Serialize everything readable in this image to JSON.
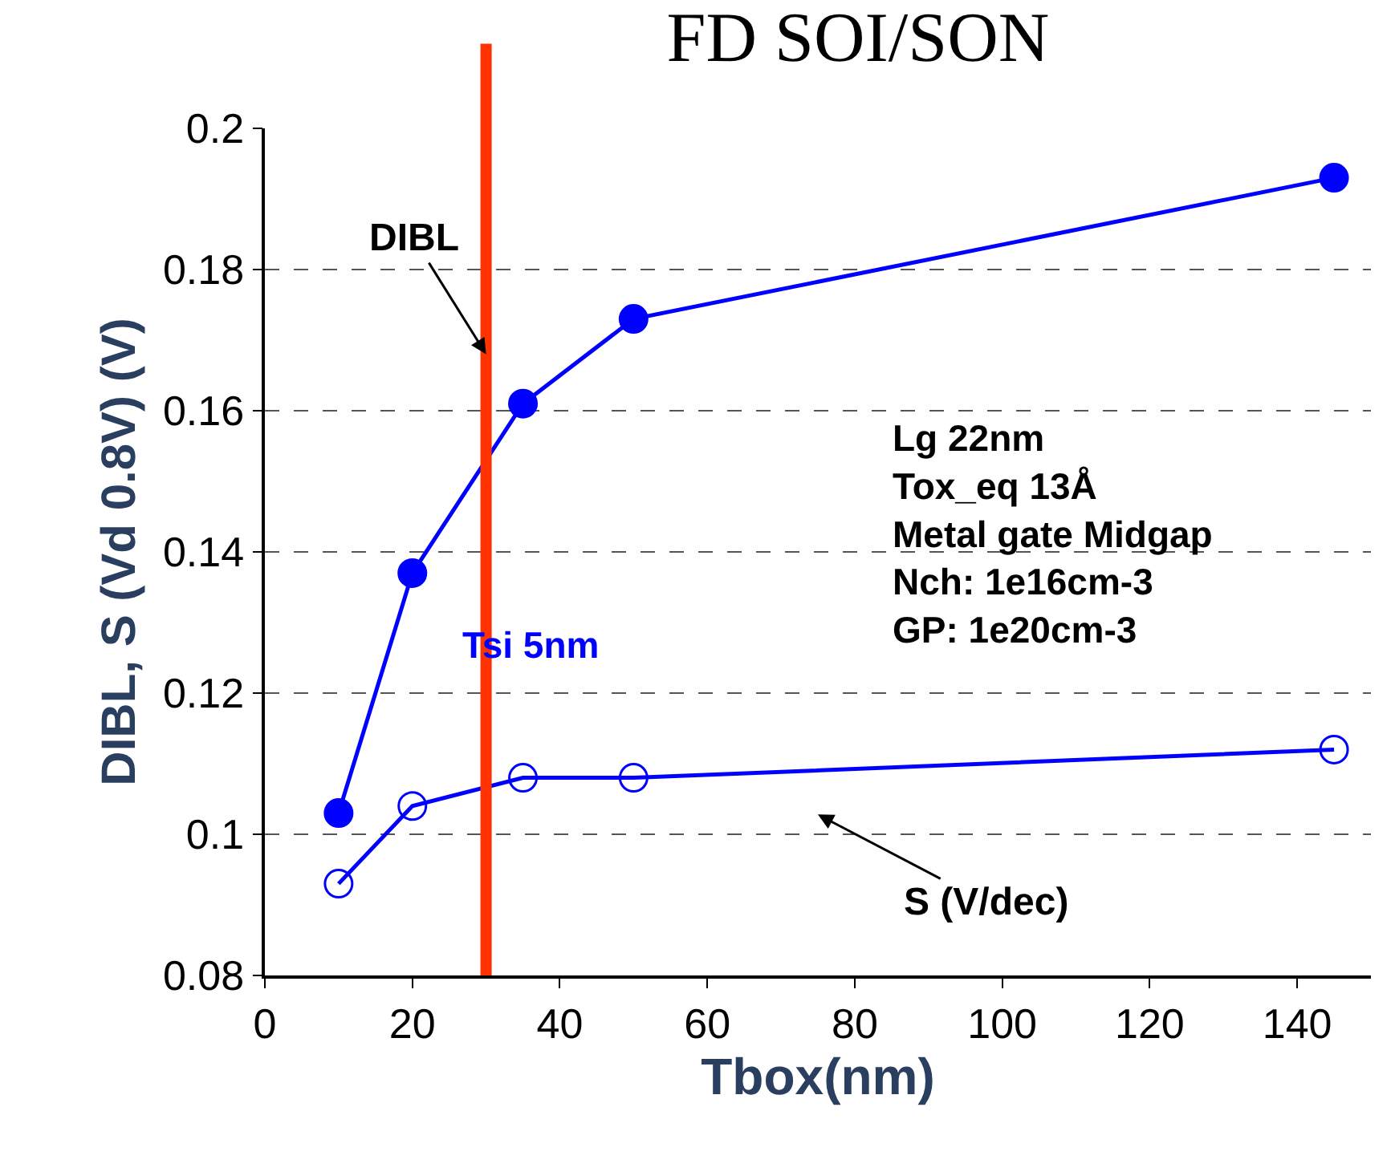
{
  "chart_data": {
    "type": "line",
    "title": "FD SOI/SON",
    "xlabel": "Tbox(nm)",
    "ylabel": "DIBL, S (Vd 0.8V) (V)",
    "x": [
      10,
      20,
      35,
      50,
      145
    ],
    "series": [
      {
        "color": "#0000ff",
        "values": [
          0.103,
          0.137,
          0.161,
          0.173,
          0.193
        ],
        "marker": "circle"
      },
      {
        "color": "#0000ff",
        "values": [
          0.093,
          0.104,
          0.108,
          0.108,
          0.112
        ],
        "marker": "circle-open"
      }
    ],
    "xlim": [
      0,
      150
    ],
    "xticks": [
      0,
      20,
      40,
      60,
      80,
      100,
      120,
      140
    ],
    "ylim": [
      0.08,
      0.2
    ],
    "yticks": [
      0.08,
      0.1,
      0.12,
      0.14,
      0.16,
      0.18,
      0.2
    ],
    "grid": "y",
    "line_style": "solid",
    "ref_lines": [
      {
        "axis": "x",
        "value": 30,
        "color": "#ff3300"
      }
    ],
    "annotations": [
      {
        "text": "DIBL",
        "x": 30,
        "y": 0.168
      },
      "S (V/dec)",
      "Tsi 5nm",
      "Lg 22nm\nTox_eq 13Å\nMetal gate Midgap\nNch: 1e16cm-3\nGP: 1e20cm-3"
    ]
  }
}
